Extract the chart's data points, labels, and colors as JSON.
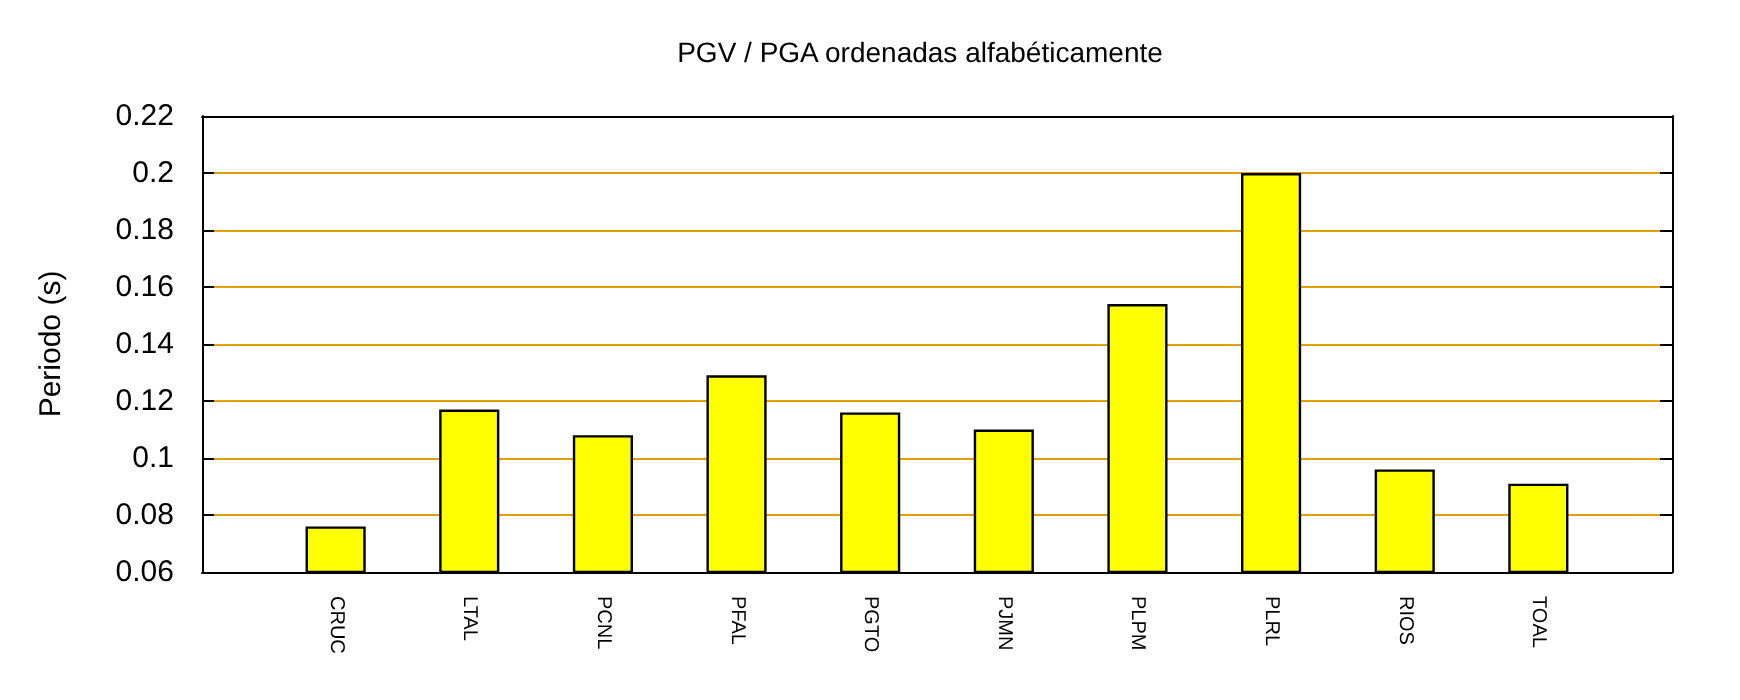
{
  "chart_data": {
    "type": "bar",
    "title": "PGV / PGA ordenadas alfabéticamente",
    "ylabel": "Periodo (s)",
    "categories": [
      "CRUC",
      "LTAL",
      "PCNL",
      "PFAL",
      "PGTO",
      "PJMN",
      "PLPM",
      "PLRL",
      "RIOS",
      "TOAL"
    ],
    "values": [
      0.076,
      0.117,
      0.108,
      0.129,
      0.116,
      0.11,
      0.154,
      0.2,
      0.096,
      0.091
    ],
    "color": "#ffff00",
    "ylim": [
      0.06,
      0.22
    ],
    "yticks": [
      0.06,
      0.08,
      0.1,
      0.12,
      0.14,
      0.16,
      0.18,
      0.2,
      0.22
    ],
    "grid": "y"
  }
}
